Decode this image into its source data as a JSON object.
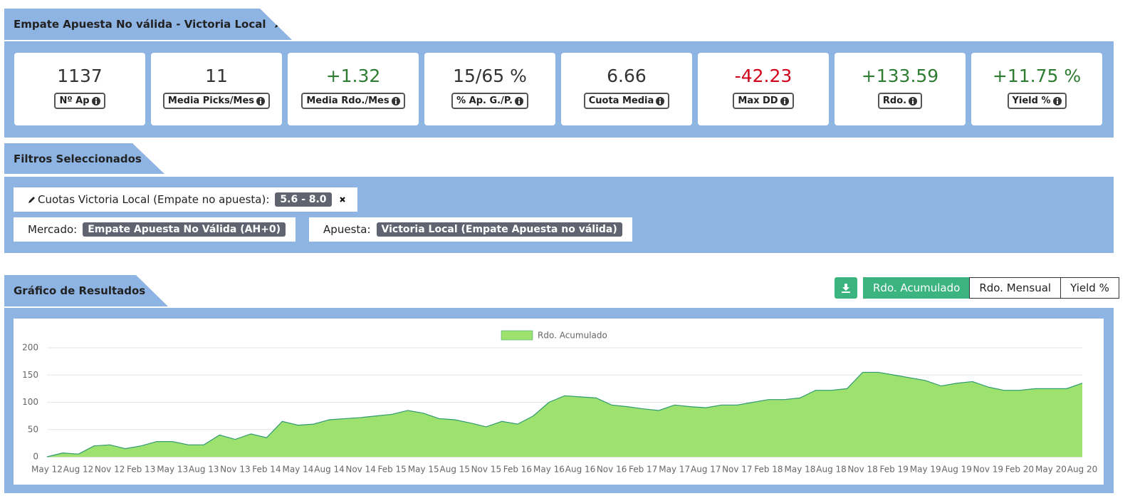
{
  "header": {
    "title": "Empate Apuesta No válida - Victoria Local"
  },
  "stats": [
    {
      "value": "1137",
      "label": "Nº Ap",
      "color": "#333333"
    },
    {
      "value": "11",
      "label": "Media Picks/Mes",
      "color": "#333333"
    },
    {
      "value": "+1.32",
      "label": "Media Rdo./Mes",
      "color": "#2e7d32"
    },
    {
      "value": "15/65 %",
      "label": "% Ap. G./P.",
      "color": "#333333"
    },
    {
      "value": "6.66",
      "label": "Cuota Media",
      "color": "#333333"
    },
    {
      "value": "-42.23",
      "label": "Max DD",
      "color": "#d0021b"
    },
    {
      "value": "+133.59",
      "label": "Rdo.",
      "color": "#2e7d32"
    },
    {
      "value": "+11.75 %",
      "label": "Yield %",
      "color": "#2e7d32"
    }
  ],
  "filters": {
    "title": "Filtros Seleccionados",
    "items": [
      {
        "label": "Cuotas Victoria Local (Empate no apuesta):",
        "badge": "5.6 - 8.0",
        "editable": true,
        "removable": true
      },
      {
        "label": "Mercado:",
        "badge": "Empate Apuesta No Válida (AH+0)",
        "editable": false,
        "removable": false
      },
      {
        "label": "Apuesta:",
        "badge": "Victoria Local (Empate Apuesta no válida)",
        "editable": false,
        "removable": false
      }
    ]
  },
  "results": {
    "title": "Gráfico de Resultados",
    "buttons": [
      "Rdo. Acumulado",
      "Rdo. Mensual",
      "Yield %"
    ],
    "active_button": 0
  },
  "chart_data": {
    "type": "area",
    "categories": [
      "May 12",
      null,
      "Aug 12",
      null,
      "Nov 12",
      null,
      "Feb 13",
      null,
      "May 13",
      null,
      "Aug 13",
      null,
      "Nov 13",
      null,
      "Feb 14",
      null,
      "May 14",
      null,
      "Aug 14",
      null,
      "Nov 14",
      null,
      "Feb 15",
      null,
      "May 15",
      null,
      "Aug 15",
      null,
      "Nov 15",
      null,
      "Feb 16",
      null,
      "May 16",
      null,
      "Aug 16",
      null,
      "Nov 16",
      null,
      "Feb 17",
      null,
      "May 17",
      null,
      "Aug 17",
      null,
      "Nov 17",
      null,
      "Feb 18",
      null,
      "May 18",
      null,
      "Aug 18",
      null,
      "Nov 18",
      null,
      "Feb 19",
      null,
      "May 19",
      null,
      "Aug 19",
      null,
      "Nov 19",
      null,
      "Feb 20",
      null,
      "May 20",
      null,
      "Aug 20"
    ],
    "series": [
      {
        "name": "Rdo. Acumulado",
        "color": "#9de26f",
        "line_color": "#2f9a6e",
        "values": [
          0,
          7,
          5,
          20,
          22,
          15,
          20,
          28,
          28,
          22,
          22,
          40,
          32,
          42,
          35,
          65,
          58,
          60,
          68,
          70,
          72,
          75,
          78,
          85,
          80,
          70,
          68,
          62,
          55,
          65,
          60,
          75,
          100,
          112,
          110,
          108,
          95,
          92,
          88,
          85,
          95,
          92,
          90,
          95,
          95,
          100,
          105,
          105,
          108,
          122,
          122,
          125,
          155,
          155,
          150,
          145,
          140,
          130,
          135,
          138,
          128,
          122,
          122,
          125,
          125,
          125,
          135
        ]
      }
    ],
    "ylim": [
      0,
      200
    ],
    "yticks": [
      0,
      50,
      100,
      150,
      200
    ],
    "grid": true
  }
}
